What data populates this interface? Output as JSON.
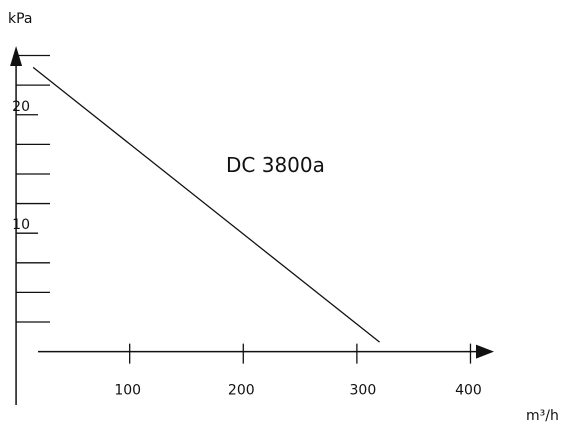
{
  "chart_data": {
    "type": "line",
    "title": "",
    "xlabel": "m³/h",
    "ylabel": "kPa",
    "xlim": [
      -30,
      470
    ],
    "ylim": [
      -4,
      28
    ],
    "x_ticks": [
      100,
      200,
      300,
      400
    ],
    "x_tick_labels": [
      "100",
      "200",
      "300",
      "400"
    ],
    "x_minor_ticks": [
      0
    ],
    "y_ticks": [
      10,
      20
    ],
    "y_tick_labels": [
      "10",
      "20"
    ],
    "y_minor_ticks": [
      2.5,
      5,
      7.5,
      12.5,
      15,
      17.5,
      22.5,
      25
    ],
    "grid": false,
    "series": [
      {
        "name": "DC 3800a",
        "color": "#111111",
        "x": [
          15,
          320
        ],
        "y": [
          24,
          0.8
        ]
      }
    ]
  }
}
